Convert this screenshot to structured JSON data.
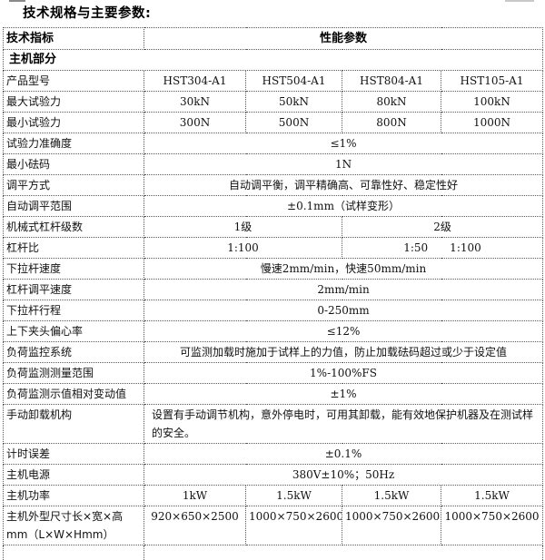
{
  "page": {
    "title": "技术规格与主要参数:"
  },
  "table": {
    "header": {
      "indicator": "技术指标",
      "parameter": "性能参数"
    },
    "section": "主机部分",
    "rows": [
      {
        "label": "产品型号",
        "type": "four",
        "values": [
          "HST304-A1",
          "HST504-A1",
          "HST804-A1",
          "HST105-A1"
        ]
      },
      {
        "label": "最大试验力",
        "type": "four",
        "values": [
          "30kN",
          "50kN",
          "80kN",
          "100kN"
        ]
      },
      {
        "label": "最小试验力",
        "type": "four",
        "values": [
          "300N",
          "500N",
          "800N",
          "1000N"
        ]
      },
      {
        "label": "试验力准确度",
        "type": "merged",
        "value": "≤1%"
      },
      {
        "label": "最小砝码",
        "type": "merged",
        "value": "1N"
      },
      {
        "label": "调平方式",
        "type": "merged",
        "value": "自动调平衡，调平精确高、可靠性好、稳定性好"
      },
      {
        "label": "自动调平范围",
        "type": "merged",
        "value": "±0.1mm（试样变形）"
      },
      {
        "label": "机械式杠杆级数",
        "type": "two",
        "values": [
          "1级",
          "2级"
        ]
      },
      {
        "label": "杠杆比",
        "type": "two",
        "values": [
          "1:100",
          "1:50　　1:100"
        ]
      },
      {
        "label": "下拉杆速度",
        "type": "merged",
        "value": "慢速2mm/min，快速50mm/min"
      },
      {
        "label": "杠杆调平速度",
        "type": "merged",
        "value": "2mm/min"
      },
      {
        "label": "下拉杆行程",
        "type": "merged",
        "value": "0-250mm"
      },
      {
        "label": "上下夹头偏心率",
        "type": "merged",
        "value": "≤12%"
      },
      {
        "label": "负荷监控系统",
        "type": "merged",
        "value": "可监测加载时施加于试样上的力值，防止加载砝码超过或少于设定值"
      },
      {
        "label": "负荷监测测量范围",
        "type": "merged",
        "value": "1%-100%FS"
      },
      {
        "label": "负荷监测示值相对变动值",
        "type": "merged",
        "value": "±1%"
      },
      {
        "label": "手动卸载机构",
        "type": "merged-left",
        "value": "设置有手动调节机构，意外停电时，可用其卸载，能有效地保护机器及在测试样的安全。"
      },
      {
        "label": "计时误差",
        "type": "merged",
        "value": "±0.1%"
      },
      {
        "label": "主机电源",
        "type": "merged",
        "value": "380V±10%；50Hz"
      },
      {
        "label": "主机功率",
        "type": "four",
        "values": [
          "1kW",
          "1.5kW",
          "1.5kW",
          "1.5kW"
        ]
      },
      {
        "label": "主机外型尺寸长×宽×高\nmm（L×W×Hmm）",
        "type": "four",
        "values": [
          "920×650×2500",
          "1000×750×2600",
          "1000×750×2600",
          "1000×750×2600"
        ]
      }
    ]
  }
}
